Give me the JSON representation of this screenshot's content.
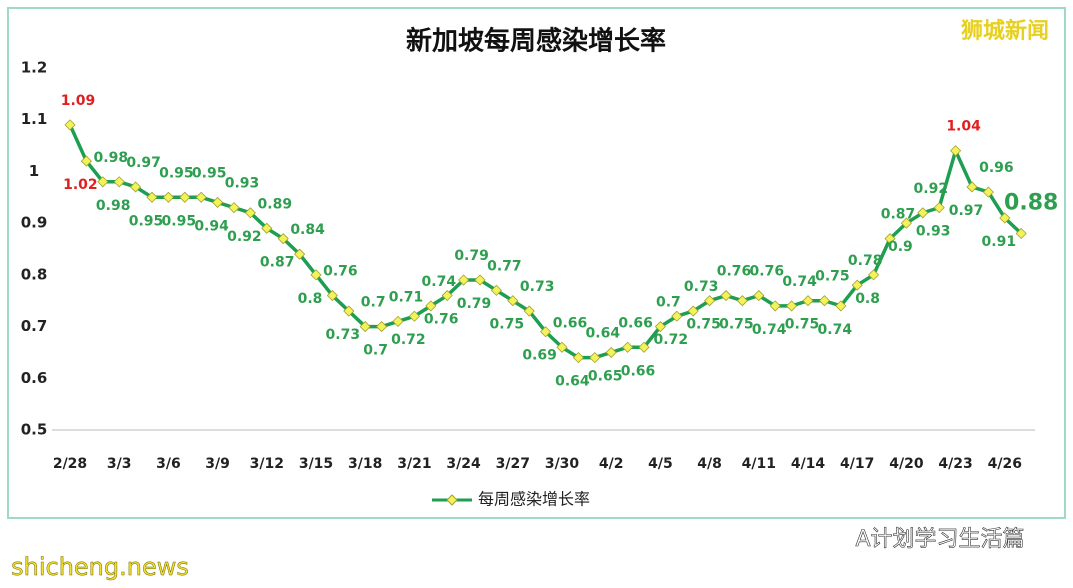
{
  "chart_data": {
    "type": "line",
    "title": "新加坡每周感染增长率",
    "categories": [
      "2/28",
      null,
      null,
      "3/3",
      null,
      null,
      "3/6",
      null,
      null,
      "3/9",
      null,
      null,
      "3/12",
      null,
      null,
      "3/15",
      null,
      null,
      "3/18",
      null,
      null,
      "3/21",
      null,
      null,
      "3/24",
      null,
      null,
      "3/27",
      null,
      null,
      "3/30",
      null,
      null,
      "4/2",
      null,
      null,
      "4/5",
      null,
      null,
      "4/8",
      null,
      null,
      "4/11",
      null,
      null,
      "4/14",
      null,
      null,
      "4/17",
      null,
      null,
      "4/20",
      null,
      null,
      "4/23",
      null,
      null,
      "4/26",
      null
    ],
    "series": [
      {
        "name": "每周感染增长率",
        "color": "#1e9e50",
        "marker_color": "#f2f25a",
        "values": [
          1.09,
          1.02,
          0.98,
          0.98,
          0.97,
          0.95,
          0.95,
          0.95,
          0.95,
          0.94,
          0.93,
          0.92,
          0.89,
          0.87,
          0.84,
          0.8,
          0.76,
          0.73,
          0.7,
          0.7,
          0.71,
          0.72,
          0.74,
          0.76,
          0.79,
          0.79,
          0.77,
          0.75,
          0.73,
          0.69,
          0.66,
          0.64,
          0.64,
          0.65,
          0.66,
          0.66,
          0.7,
          0.72,
          0.73,
          0.75,
          0.76,
          0.75,
          0.76,
          0.74,
          0.74,
          0.75,
          0.75,
          0.74,
          0.78,
          0.8,
          0.87,
          0.9,
          0.92,
          0.93,
          1.04,
          0.97,
          0.96,
          0.91,
          0.88
        ]
      }
    ],
    "ylim": [
      0.5,
      1.2
    ],
    "yticks": [
      0.5,
      0.6,
      0.7,
      0.8,
      0.9,
      1,
      1.1,
      1.2
    ],
    "label_color": "#2e9e4f",
    "highlight_color": "#e02020",
    "watermarks": [
      "狮城新闻",
      "A计划学习生活篇",
      "shicheng.news"
    ]
  }
}
